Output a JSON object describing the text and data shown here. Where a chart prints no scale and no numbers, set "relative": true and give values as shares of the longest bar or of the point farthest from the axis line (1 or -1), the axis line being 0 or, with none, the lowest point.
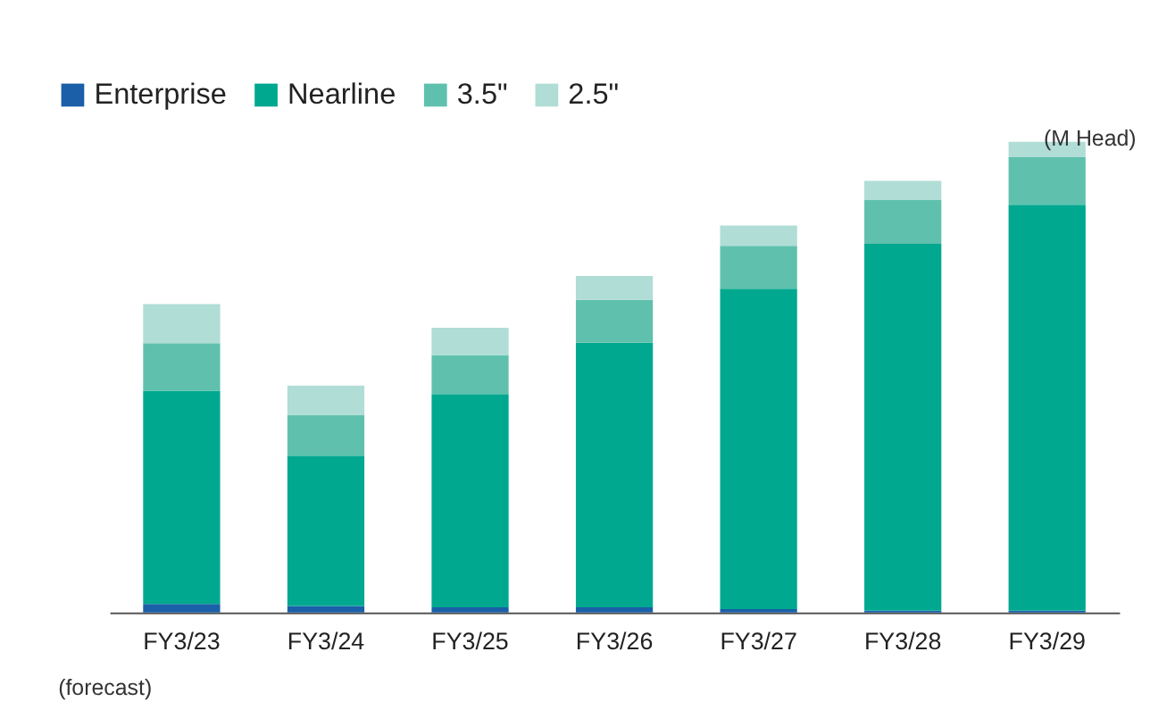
{
  "chart_data": {
    "type": "bar",
    "stacked": true,
    "relative": true,
    "ylabel": "(M Head)",
    "legend": "top left",
    "grid": false,
    "categories": [
      "FY3/23",
      "FY3/24",
      "FY3/25",
      "FY3/26",
      "FY3/27",
      "FY3/28",
      "FY3/29"
    ],
    "series": [
      {
        "name": "Enterprise",
        "color": "#1a5fa8",
        "values": [
          0.018,
          0.014,
          0.011,
          0.011,
          0.007,
          0.004,
          0.004
        ]
      },
      {
        "name": "Nearline",
        "color": "#00a88f",
        "values": [
          0.453,
          0.319,
          0.453,
          0.562,
          0.681,
          0.779,
          0.862
        ]
      },
      {
        "name": "3.5\"",
        "color": "#5fc1ad",
        "values": [
          0.101,
          0.087,
          0.083,
          0.091,
          0.091,
          0.094,
          0.101
        ]
      },
      {
        "name": "2.5\"",
        "color": "#b0ddd5",
        "values": [
          0.083,
          0.062,
          0.058,
          0.051,
          0.043,
          0.04,
          0.033
        ]
      }
    ],
    "annotations": [
      "(forecast)"
    ]
  }
}
